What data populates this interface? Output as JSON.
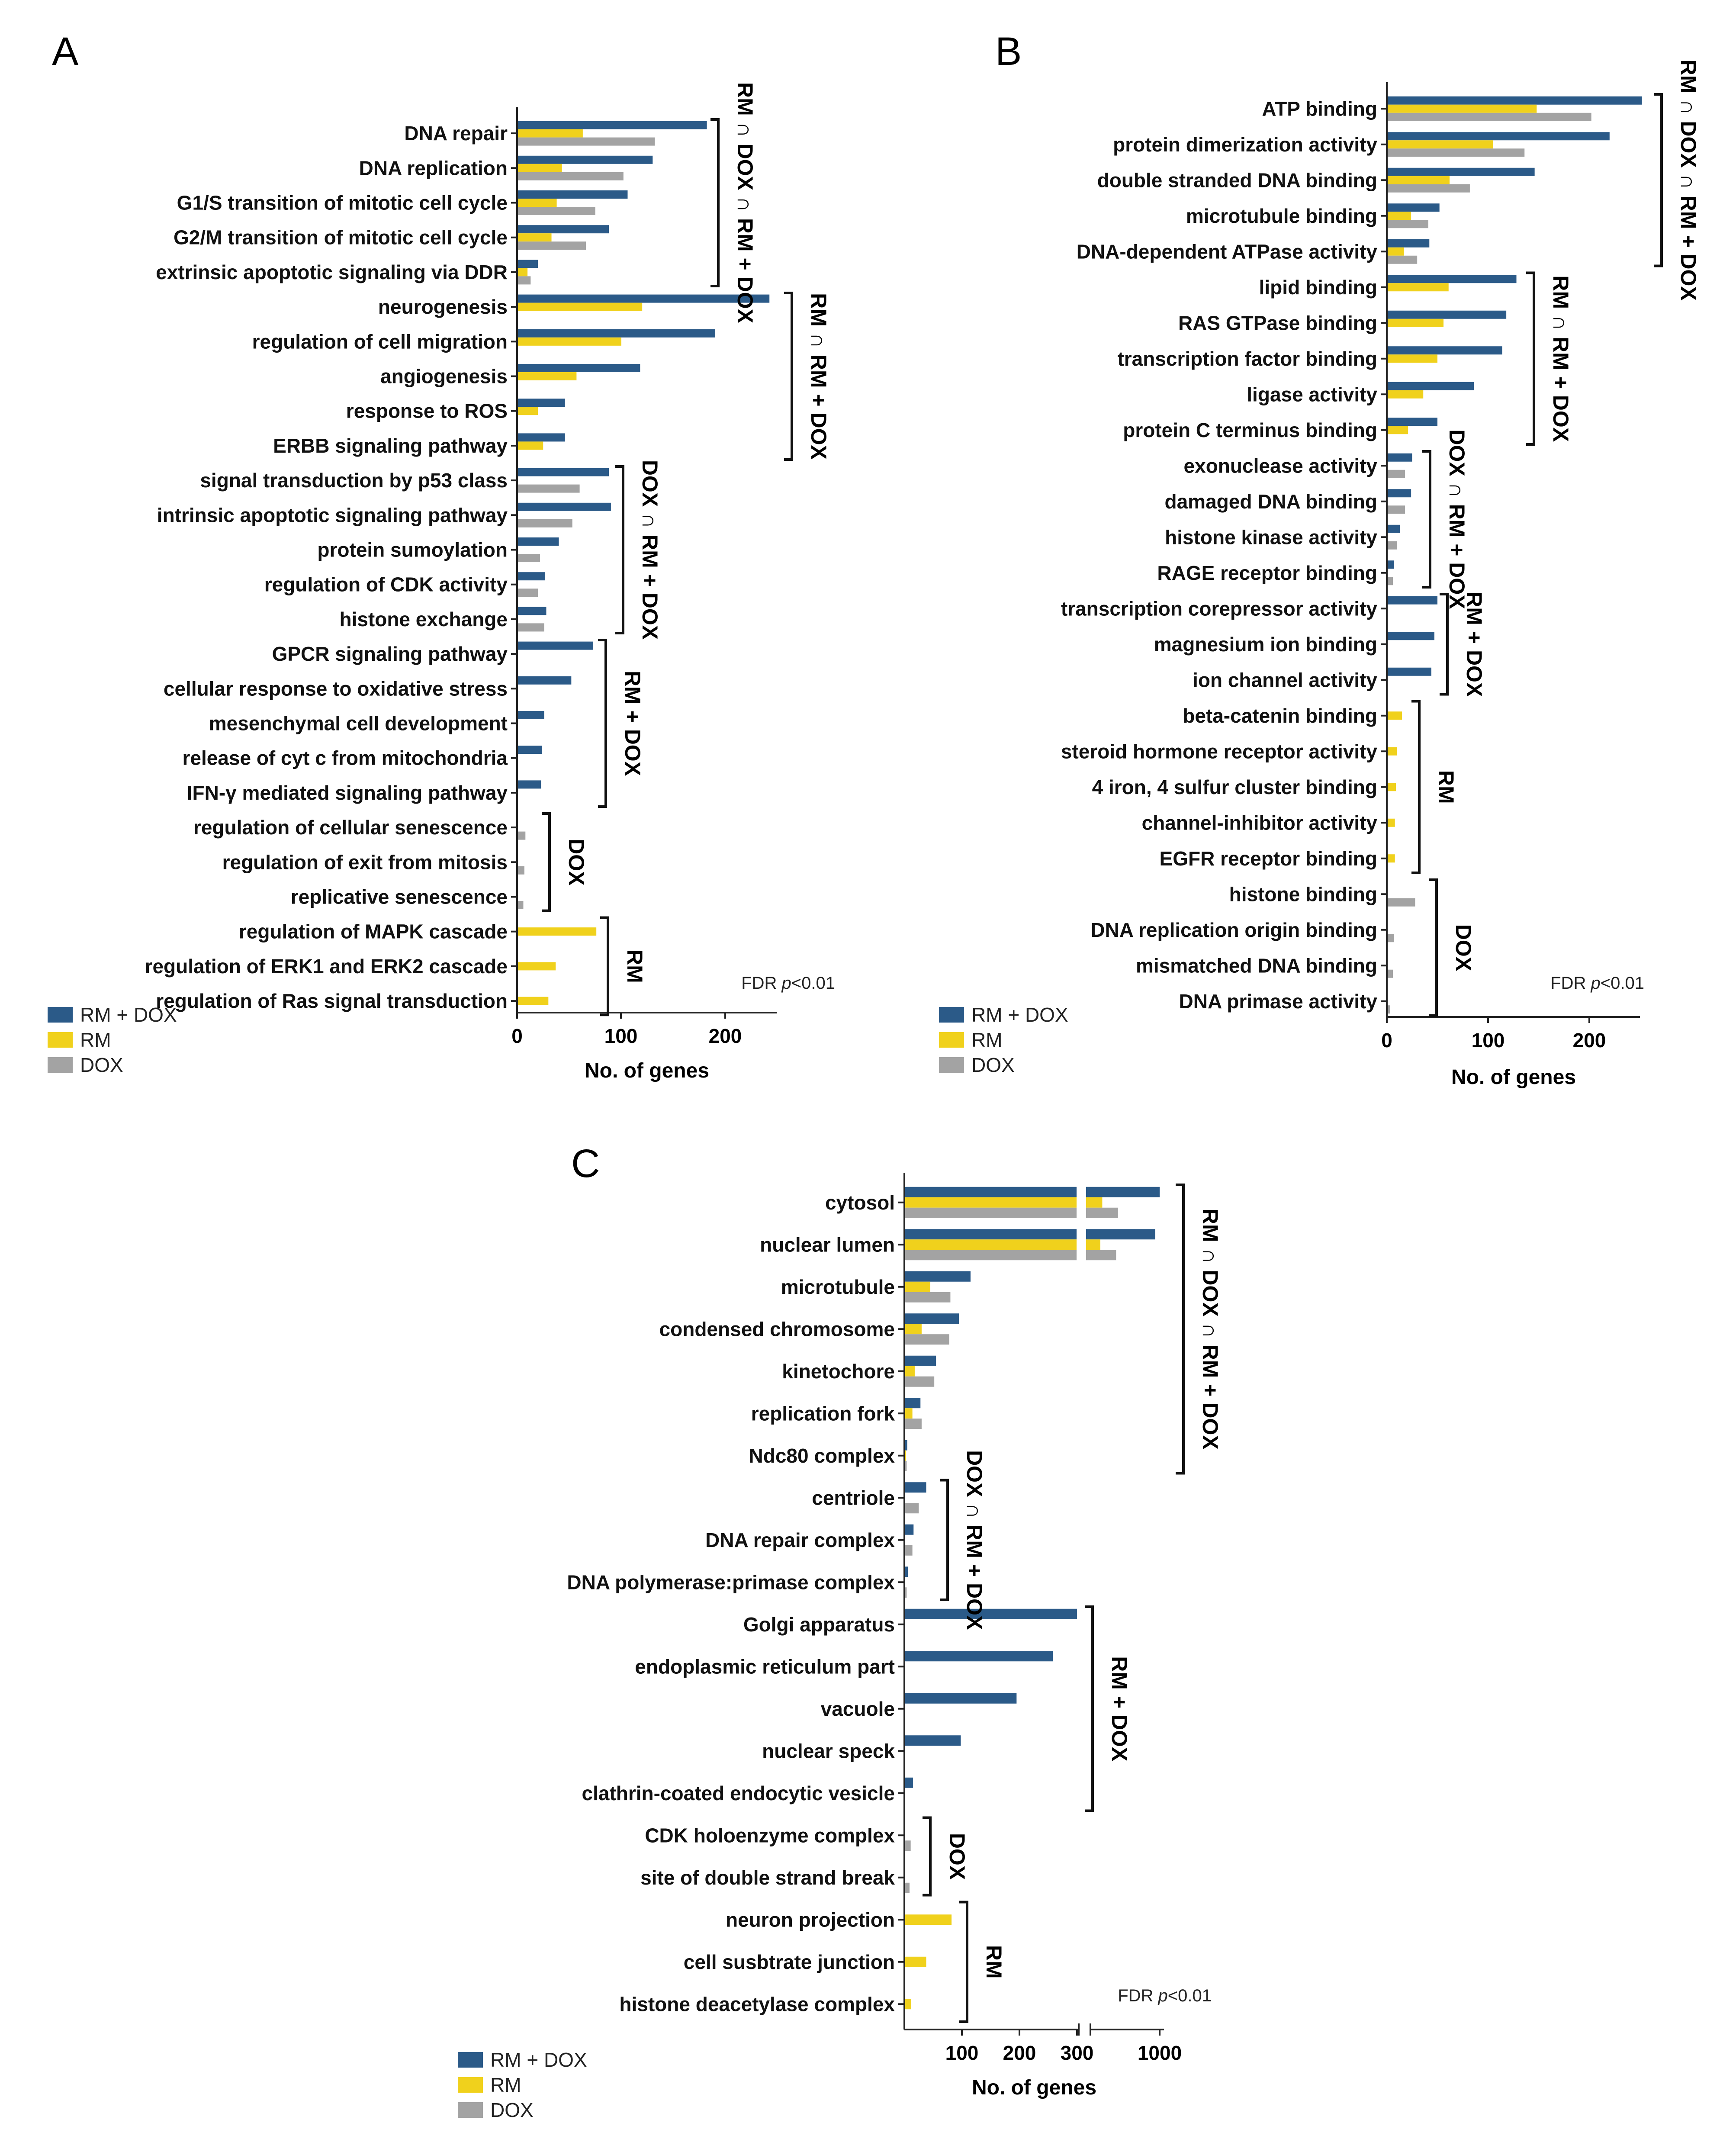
{
  "colors": {
    "rm_dox": "#2b5a88",
    "rm": "#f0d11c",
    "dox": "#a3a3a3"
  },
  "legend": [
    {
      "key": "rm_dox",
      "label": "RM + DOX"
    },
    {
      "key": "rm",
      "label": "RM"
    },
    {
      "key": "dox",
      "label": "DOX"
    }
  ],
  "chart_data": [
    {
      "panel": "A",
      "type": "bar",
      "orientation": "horizontal",
      "xlabel": "No. of genes",
      "xlim": [
        0,
        250
      ],
      "xticks": [
        "0",
        "100",
        "200"
      ],
      "note_prefix": "FDR ",
      "note_p": "p",
      "note_suffix": "<0.01",
      "categories": [
        "DNA repair",
        "DNA replication",
        "G1/S transition of mitotic cell cycle",
        "G2/M transition of mitotic cell cycle",
        "extrinsic apoptotic signaling via DDR",
        "neurogenesis",
        "regulation of cell migration",
        "angiogenesis",
        "response to ROS",
        "ERBB signaling pathway",
        "signal transduction by p53 class",
        "intrinsic apoptotic signaling pathway",
        "protein sumoylation",
        "regulation of CDK activity",
        "histone exchange",
        "GPCR signaling pathway",
        "cellular response to oxidative stress",
        "mesenchymal cell development",
        "release of cyt c from mitochondria",
        "IFN-γ mediated signaling pathway",
        "regulation of cellular senescence",
        "regulation of exit from mitosis",
        "replicative senescence",
        "regulation of MAPK cascade",
        "regulation of ERK1 and ERK2 cascade",
        "regulation of Ras signal transduction"
      ],
      "series": [
        {
          "name": "RM + DOX",
          "values": [
            182,
            130,
            106,
            88,
            20,
            242,
            190,
            118,
            46,
            46,
            88,
            90,
            40,
            27,
            28,
            73,
            52,
            26,
            24,
            23,
            0,
            0,
            0,
            0,
            0,
            0
          ]
        },
        {
          "name": "RM",
          "values": [
            63,
            43,
            38,
            33,
            10,
            120,
            100,
            57,
            20,
            25,
            0,
            0,
            0,
            0,
            0,
            0,
            0,
            0,
            0,
            0,
            0,
            0,
            0,
            76,
            37,
            30
          ]
        },
        {
          "name": "DOX",
          "values": [
            132,
            102,
            75,
            66,
            13,
            0,
            0,
            0,
            0,
            0,
            60,
            53,
            22,
            20,
            26,
            0,
            0,
            0,
            0,
            0,
            8,
            7,
            6,
            0,
            0,
            0
          ]
        }
      ],
      "groups": [
        {
          "label": "RM ∩ DOX ∩ RM + DOX",
          "from": 0,
          "to": 4
        },
        {
          "label": "RM ∩ RM + DOX",
          "from": 5,
          "to": 9
        },
        {
          "label": "DOX ∩ RM + DOX",
          "from": 10,
          "to": 14
        },
        {
          "label": "RM + DOX",
          "from": 15,
          "to": 19
        },
        {
          "label": "DOX",
          "from": 20,
          "to": 22
        },
        {
          "label": "RM",
          "from": 23,
          "to": 25
        }
      ]
    },
    {
      "panel": "B",
      "type": "bar",
      "orientation": "horizontal",
      "xlabel": "No. of genes",
      "xlim": [
        0,
        250
      ],
      "xticks": [
        "0",
        "100",
        "200"
      ],
      "note_prefix": "FDR ",
      "note_p": "p",
      "note_suffix": "<0.01",
      "categories": [
        "ATP binding",
        "protein dimerization activity",
        "double stranded DNA binding",
        "microtubule binding",
        "DNA-dependent ATPase activity",
        "lipid binding",
        "RAS GTPase binding",
        "transcription factor binding",
        "ligase activity",
        "protein C terminus binding",
        "exonuclease activity",
        "damaged DNA binding",
        "histone kinase activity",
        "RAGE receptor binding",
        "transcription corepressor activity",
        "magnesium ion binding",
        "ion channel activity",
        "beta-catenin binding",
        "steroid hormone receptor activity",
        "4 iron, 4 sulfur cluster binding",
        "channel-inhibitor activity",
        "EGFR receptor binding",
        "histone binding",
        "DNA replication origin binding",
        "mismatched DNA binding",
        "DNA primase activity"
      ],
      "series": [
        {
          "name": "RM + DOX",
          "values": [
            252,
            220,
            146,
            52,
            42,
            128,
            118,
            114,
            86,
            50,
            25,
            24,
            13,
            7,
            50,
            47,
            44,
            0,
            0,
            0,
            0,
            0,
            0,
            0,
            0,
            0
          ]
        },
        {
          "name": "RM",
          "values": [
            148,
            105,
            62,
            24,
            17,
            61,
            56,
            50,
            36,
            21,
            0,
            0,
            0,
            0,
            0,
            0,
            0,
            15,
            10,
            9,
            8,
            8,
            0,
            0,
            0,
            0
          ]
        },
        {
          "name": "DOX",
          "values": [
            202,
            136,
            82,
            41,
            30,
            0,
            0,
            0,
            0,
            0,
            18,
            18,
            10,
            6,
            0,
            0,
            0,
            0,
            0,
            0,
            0,
            0,
            28,
            7,
            6,
            3
          ]
        }
      ],
      "groups": [
        {
          "label": "RM ∩ DOX ∩ RM + DOX",
          "from": 0,
          "to": 4
        },
        {
          "label": "RM ∩ RM + DOX",
          "from": 5,
          "to": 9
        },
        {
          "label": "DOX ∩ RM + DOX",
          "from": 10,
          "to": 13
        },
        {
          "label": "RM + DOX",
          "from": 14,
          "to": 16
        },
        {
          "label": "RM",
          "from": 17,
          "to": 21
        },
        {
          "label": "DOX",
          "from": 22,
          "to": 25
        }
      ]
    },
    {
      "panel": "C",
      "type": "bar",
      "orientation": "horizontal",
      "axis_break": [
        300,
        1000
      ],
      "xlabel": "No. of genes",
      "xticks": [
        "100",
        "200",
        "300",
        "1000"
      ],
      "note_prefix": "FDR ",
      "note_p": "p",
      "note_suffix": "<0.01",
      "categories": [
        "cytosol",
        "nuclear lumen",
        "microtubule",
        "condensed chromosome",
        "kinetochore",
        "replication fork",
        "Ndc80 complex",
        "centriole",
        "DNA repair complex",
        "DNA polymerase:primase complex",
        "Golgi apparatus",
        "endoplasmic reticulum part",
        "vacuole",
        "nuclear speck",
        "clathrin-coated endocytic vesicle",
        "CDK holoenzyme complex",
        "site of double strand break",
        "neuron projection",
        "cell susbtrate junction",
        "histone deacetylase complex"
      ],
      "series": [
        {
          "name": "RM + DOX",
          "values": [
            1000,
            955,
            115,
            95,
            55,
            28,
            5,
            38,
            16,
            6,
            300,
            258,
            195,
            98,
            15,
            0,
            0,
            0,
            0,
            0
          ]
        },
        {
          "name": "RM",
          "values": [
            420,
            400,
            45,
            30,
            18,
            14,
            3,
            0,
            0,
            0,
            0,
            0,
            0,
            0,
            0,
            0,
            0,
            82,
            38,
            12
          ]
        },
        {
          "name": "DOX",
          "values": [
            580,
            560,
            80,
            78,
            52,
            30,
            4,
            25,
            14,
            4,
            0,
            0,
            0,
            0,
            0,
            11,
            9,
            0,
            0,
            0
          ]
        }
      ],
      "groups": [
        {
          "label": "RM ∩ DOX ∩ RM + DOX",
          "from": 0,
          "to": 6
        },
        {
          "label": "DOX ∩ RM + DOX",
          "from": 7,
          "to": 9
        },
        {
          "label": "RM + DOX",
          "from": 10,
          "to": 14
        },
        {
          "label": "DOX",
          "from": 15,
          "to": 16
        },
        {
          "label": "RM",
          "from": 17,
          "to": 19
        }
      ]
    }
  ]
}
